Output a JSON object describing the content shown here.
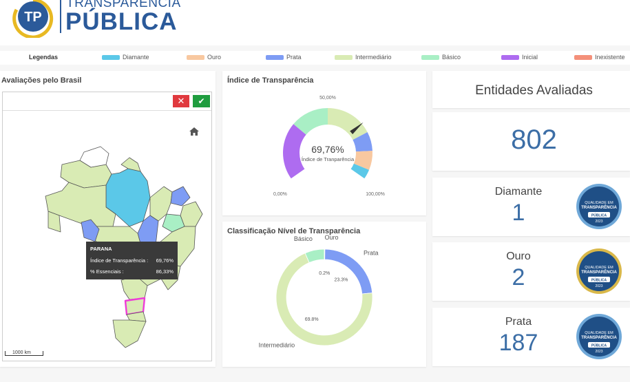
{
  "header": {
    "logo_text": "TP",
    "title_top": "TRANSPARÊNCIA",
    "title": "PÚBLICA"
  },
  "legend": {
    "title": "Legendas",
    "items": [
      {
        "name": "Diamante",
        "color": "#5bc8e8"
      },
      {
        "name": "Ouro",
        "color": "#f8c8a0"
      },
      {
        "name": "Prata",
        "color": "#7e9cf4"
      },
      {
        "name": "Intermediário",
        "color": "#d9ebb4"
      },
      {
        "name": "Básico",
        "color": "#a9efc5"
      },
      {
        "name": "Inicial",
        "color": "#ae6cf0"
      },
      {
        "name": "Inexistente",
        "color": "#f4907a"
      }
    ]
  },
  "map_panel": {
    "title": "Avaliações pelo Brasil",
    "tooltip": {
      "title": "PARANA",
      "rows": [
        {
          "label": "Índice de Transparência :",
          "value": "69,76%"
        },
        {
          "label": "% Essenciais :",
          "value": "86,33%"
        }
      ]
    },
    "scale_label": "1000 km"
  },
  "chart_data": [
    {
      "type": "gauge",
      "title": "Índice de Transparência",
      "value": 69.76,
      "value_label": "69,76%",
      "subtitle": "Índice de Tranparência",
      "range": [
        0,
        100
      ],
      "ticks": [
        {
          "value": 0,
          "label": "0,00%"
        },
        {
          "value": 50,
          "label": "50,00%"
        },
        {
          "value": 100,
          "label": "100,00%"
        }
      ],
      "bands": [
        {
          "from": 0,
          "to": 30,
          "color": "#ae6cf0"
        },
        {
          "from": 30,
          "to": 50,
          "color": "#a9efc5"
        },
        {
          "from": 50,
          "to": 75,
          "color": "#d9ebb4"
        },
        {
          "from": 75,
          "to": 85,
          "color": "#7e9cf4"
        },
        {
          "from": 85,
          "to": 95,
          "color": "#f8c8a0"
        },
        {
          "from": 95,
          "to": 100,
          "color": "#5bc8e8"
        }
      ]
    },
    {
      "type": "donut",
      "title": "Classificação Nível de Transparência",
      "categories": [
        "Ouro",
        "Prata",
        "Intermediário",
        "Básico"
      ],
      "values": [
        0.2,
        23.3,
        69.8,
        6.5
      ],
      "value_labels": [
        "0.2%",
        "23.3%",
        "69.8%",
        null
      ],
      "colors": [
        "#ae6cf0",
        "#7e9cf4",
        "#d9ebb4",
        "#a9efc5"
      ]
    }
  ],
  "entities": {
    "title": "Entidades Avaliadas",
    "total": 802,
    "cards": [
      {
        "name": "Diamante",
        "count": 1,
        "badge": {
          "line1": "QUALIDADE EM",
          "line2": "TRANSPARÊNCIA",
          "line3": "PÚBLICA",
          "year": "2023"
        }
      },
      {
        "name": "Ouro",
        "count": 2,
        "badge": {
          "line1": "QUALIDADE EM",
          "line2": "TRANSPARÊNCIA",
          "line3": "PÚBLICA",
          "year": "2023"
        }
      },
      {
        "name": "Prata",
        "count": 187,
        "badge": {
          "line1": "QUALIDADE EM",
          "line2": "TRANSPARÊNCIA",
          "line3": "PÚBLICA",
          "year": "2023"
        }
      }
    ]
  }
}
